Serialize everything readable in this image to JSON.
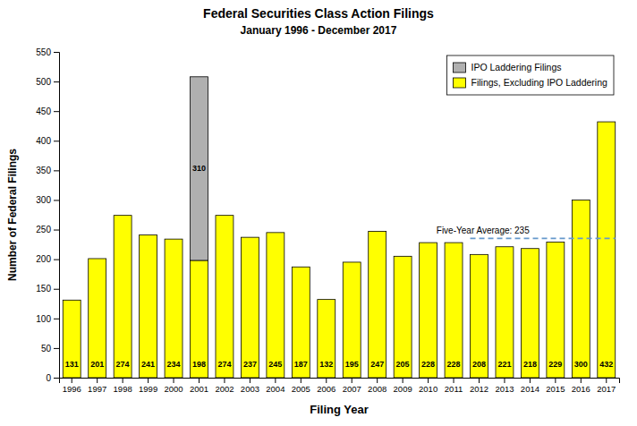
{
  "chart_data": {
    "type": "bar",
    "title": "Federal Securities Class Action Filings",
    "subtitle": "January 1996 - December 2017",
    "xlabel": "Filing Year",
    "ylabel": "Number of Federal Filings",
    "categories": [
      "1996",
      "1997",
      "1998",
      "1999",
      "2000",
      "2001",
      "2002",
      "2003",
      "2004",
      "2005",
      "2006",
      "2007",
      "2008",
      "2009",
      "2010",
      "2011",
      "2012",
      "2013",
      "2014",
      "2015",
      "2016",
      "2017"
    ],
    "series": [
      {
        "name": "Filings, Excluding IPO Laddering",
        "color": "#FFFF00",
        "values": [
          131,
          201,
          274,
          241,
          234,
          198,
          274,
          237,
          245,
          187,
          132,
          195,
          247,
          205,
          228,
          228,
          208,
          221,
          218,
          229,
          300,
          432
        ]
      },
      {
        "name": "IPO Laddering Filings",
        "color": "#B0B0B0",
        "values": [
          0,
          0,
          0,
          0,
          0,
          310,
          0,
          0,
          0,
          0,
          0,
          0,
          0,
          0,
          0,
          0,
          0,
          0,
          0,
          0,
          0,
          0
        ],
        "value_labels": [
          null,
          null,
          null,
          null,
          null,
          "310",
          null,
          null,
          null,
          null,
          null,
          null,
          null,
          null,
          null,
          null,
          null,
          null,
          null,
          null,
          null,
          null
        ]
      }
    ],
    "stacked": true,
    "data_labels": true,
    "annotations": [
      {
        "text": "Five-Year Average: 235",
        "y": 235,
        "x": [
          "2012",
          "2017"
        ],
        "color": "#6699CC",
        "line_style": "dashed"
      }
    ],
    "ylim": [
      0,
      550
    ],
    "yticks": [
      0,
      50,
      100,
      150,
      200,
      250,
      300,
      350,
      400,
      450,
      500,
      550
    ],
    "grid": false,
    "legend": "upper right"
  }
}
